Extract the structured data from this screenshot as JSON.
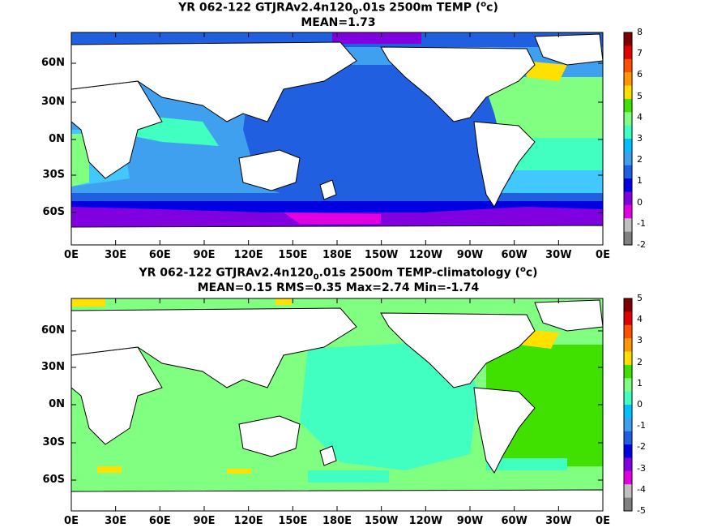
{
  "panels": [
    {
      "title_line1": "YR 062-122 GTJRAv2.4n120",
      "title_sub": "0",
      "title_line1b": ".01s 2500m TEMP (",
      "title_sup": "o",
      "title_line1c": "c)",
      "title_line2": "MEAN=1.73",
      "y_labels": [
        "60N",
        "30N",
        "0N",
        "30S",
        "60S"
      ],
      "x_labels": [
        "0E",
        "30E",
        "60E",
        "90E",
        "120E",
        "150E",
        "180E",
        "150W",
        "120W",
        "90W",
        "60W",
        "30W",
        "0E"
      ],
      "colorbar_labels": [
        "8",
        "7",
        "6",
        "5",
        "4",
        "3",
        "2",
        "1",
        "0",
        "-1",
        "-2"
      ],
      "colorbar_colors": [
        "#800000",
        "#e00000",
        "#ff5000",
        "#ff9800",
        "#ffe000",
        "#40e000",
        "#80ff80",
        "#40ffc0",
        "#00c0ff",
        "#40a0f0",
        "#2060e0",
        "#0000e0",
        "#8000e0",
        "#e000e0",
        "#c0c0c0",
        "#808080"
      ]
    },
    {
      "title_line1": "YR 062-122 GTJRAv2.4n120",
      "title_sub": "0",
      "title_line1b": ".01s 2500m TEMP-climatology (",
      "title_sup": "o",
      "title_line1c": "c)",
      "title_line2": "MEAN=0.15   RMS=0.35   Max=2.74   Min=-1.74",
      "y_labels": [
        "60N",
        "30N",
        "0N",
        "30S",
        "60S"
      ],
      "x_labels": [
        "0E",
        "30E",
        "60E",
        "90E",
        "120E",
        "150E",
        "180E",
        "150W",
        "120W",
        "90W",
        "60W",
        "30W",
        "0E"
      ],
      "colorbar_labels": [
        "5",
        "4",
        "3",
        "2",
        "1",
        "0",
        "-1",
        "-2",
        "-3",
        "-4",
        "-5"
      ],
      "colorbar_colors": [
        "#800000",
        "#e00000",
        "#ff5000",
        "#ff9800",
        "#ffe000",
        "#40e000",
        "#80ff80",
        "#40ffc0",
        "#00c0ff",
        "#40a0f0",
        "#2060e0",
        "#0000e0",
        "#8000e0",
        "#e000e0",
        "#c0c0c0",
        "#808080"
      ]
    }
  ],
  "colors": {
    "land": "#ffffff",
    "coast": "#000000",
    "dark_green": "#40e000",
    "light_green": "#80ff80",
    "aqua": "#40ffc0",
    "sky": "#40a0f0",
    "mid_blue": "#2060e0",
    "deep_blue": "#0000e0",
    "purple": "#8000e0",
    "magenta": "#e000e0",
    "yellow": "#ffe000",
    "orange": "#ff9800",
    "pale_cyan": "#40c8ff"
  }
}
